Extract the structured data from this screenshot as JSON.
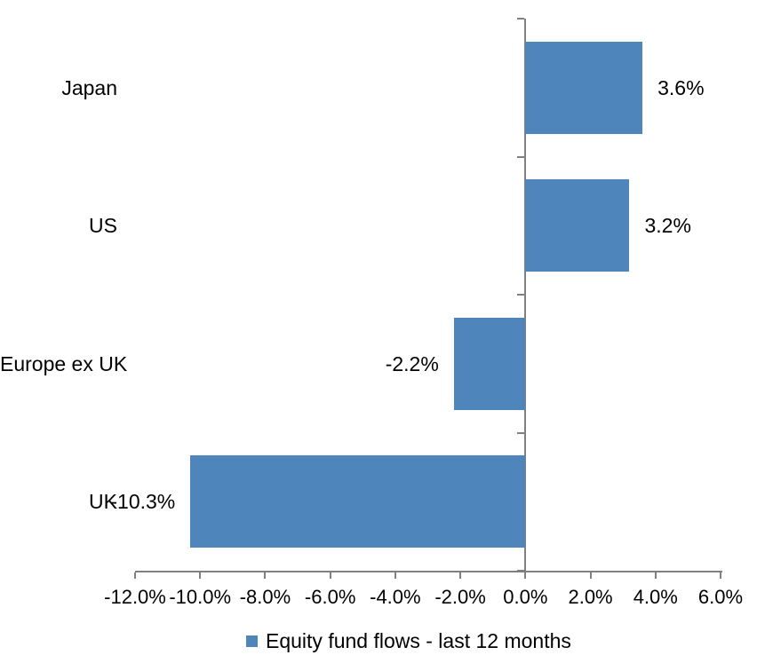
{
  "chart_data": {
    "type": "bar",
    "orientation": "horizontal",
    "title": "",
    "categories": [
      "Japan",
      "US",
      "Europe ex UK",
      "UK"
    ],
    "values": [
      3.6,
      3.2,
      -2.2,
      -10.3
    ],
    "data_labels": [
      "3.6%",
      "3.2%",
      "-2.2%",
      "-10.3%"
    ],
    "series_name": "Equity fund flows - last 12 months",
    "xlim": [
      -12,
      6
    ],
    "x_ticks": [
      -12,
      -10,
      -8,
      -6,
      -4,
      -2,
      0,
      2,
      4,
      6
    ],
    "x_tick_labels": [
      "-12.0%",
      "-10.0%",
      "-8.0%",
      "-6.0%",
      "-4.0%",
      "-2.0%",
      "0.0%",
      "2.0%",
      "4.0%",
      "6.0%"
    ],
    "grid": false,
    "legend_position": "bottom",
    "bar_color": "#4E86BC",
    "axis_color": "#808080",
    "text_color": "#000000"
  },
  "legend": {
    "label": "Equity fund flows - last 12 months",
    "swatch_color": "#4E86BC"
  }
}
